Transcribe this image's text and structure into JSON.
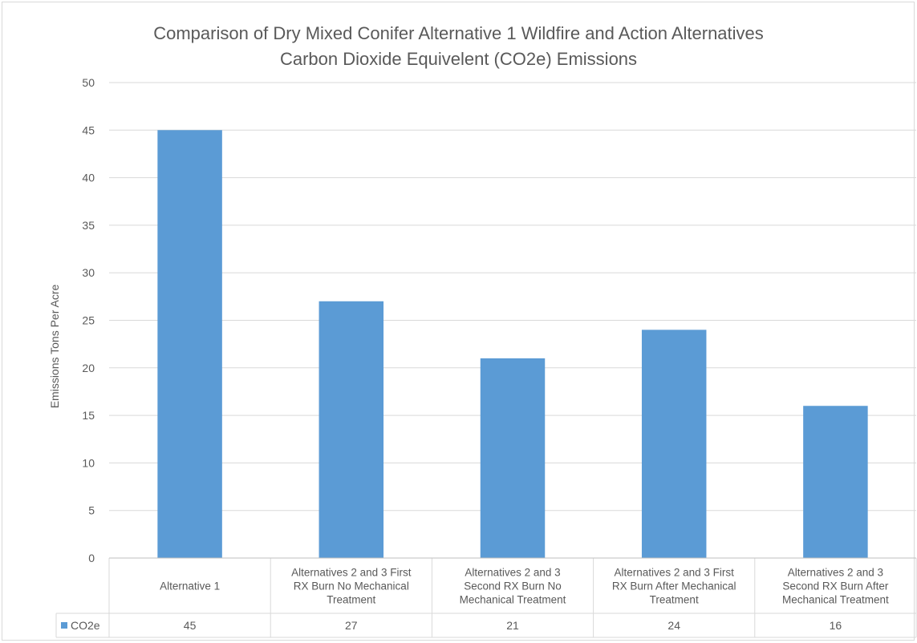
{
  "chart_data": {
    "type": "bar",
    "title_lines": [
      "Comparison of Dry Mixed Conifer Alternative 1 Wildfire and Action Alternatives",
      "Carbon Dioxide Equivelent (CO2e) Emissions"
    ],
    "ylabel": "Emissions Tons Per Acre",
    "ylim": [
      0,
      50
    ],
    "yticks": [
      0,
      5,
      10,
      15,
      20,
      25,
      30,
      35,
      40,
      45,
      50
    ],
    "grid": true,
    "legend_position": "data-table",
    "categories": [
      [
        "Alternative 1"
      ],
      [
        "Alternatives 2 and 3 First",
        "RX Burn No Mechanical",
        "Treatment"
      ],
      [
        "Alternatives 2 and 3",
        "Second RX Burn No",
        "Mechanical Treatment"
      ],
      [
        "Alternatives 2 and 3 First",
        "RX Burn After Mechanical",
        "Treatment"
      ],
      [
        "Alternatives 2 and 3",
        "Second RX Burn After",
        "Mechanical Treatment"
      ]
    ],
    "series": [
      {
        "name": "CO2e",
        "values": [
          45,
          27,
          21,
          24,
          16
        ],
        "color": "#5b9bd5"
      }
    ]
  }
}
